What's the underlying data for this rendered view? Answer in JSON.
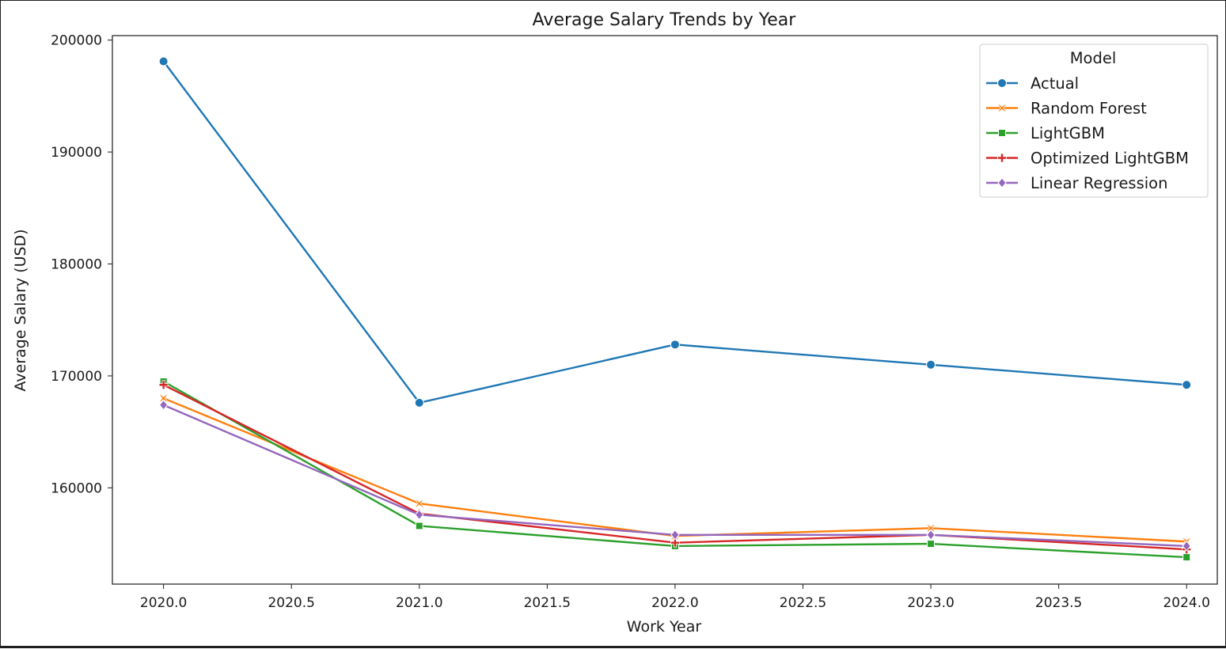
{
  "chart_data": {
    "type": "line",
    "title": "Average Salary Trends by Year",
    "xlabel": "Work Year",
    "ylabel": "Average Salary (USD)",
    "x": [
      2020,
      2021,
      2022,
      2023,
      2024
    ],
    "xlim": [
      2019.8,
      2024.12
    ],
    "ylim": [
      151400,
      200400
    ],
    "x_ticks": [
      2020.0,
      2020.5,
      2021.0,
      2021.5,
      2022.0,
      2022.5,
      2023.0,
      2023.5,
      2024.0
    ],
    "x_tick_labels": [
      "2020.0",
      "2020.5",
      "2021.0",
      "2021.5",
      "2022.0",
      "2022.5",
      "2023.0",
      "2023.5",
      "2024.0"
    ],
    "y_ticks": [
      160000,
      170000,
      180000,
      190000,
      200000
    ],
    "y_tick_labels": [
      "160000",
      "170000",
      "180000",
      "190000",
      "200000"
    ],
    "grid": false,
    "legend": {
      "title": "Model",
      "placement": "top-right"
    },
    "series": [
      {
        "name": "Actual",
        "color": "#1f77b4",
        "marker": "circle",
        "values": [
          198100,
          167600,
          172800,
          171000,
          169200
        ]
      },
      {
        "name": "Random Forest",
        "color": "#ff7f0e",
        "marker": "x",
        "values": [
          168000,
          158600,
          155700,
          156400,
          155200
        ]
      },
      {
        "name": "LightGBM",
        "color": "#2ca02c",
        "marker": "square",
        "values": [
          169500,
          156600,
          154800,
          155000,
          153800
        ]
      },
      {
        "name": "Optimized LightGBM",
        "color": "#d62728",
        "marker": "plus",
        "values": [
          169200,
          157700,
          155100,
          155800,
          154500
        ]
      },
      {
        "name": "Linear Regression",
        "color": "#9467bd",
        "marker": "diamond",
        "values": [
          167400,
          157600,
          155800,
          155800,
          154800
        ]
      }
    ]
  }
}
